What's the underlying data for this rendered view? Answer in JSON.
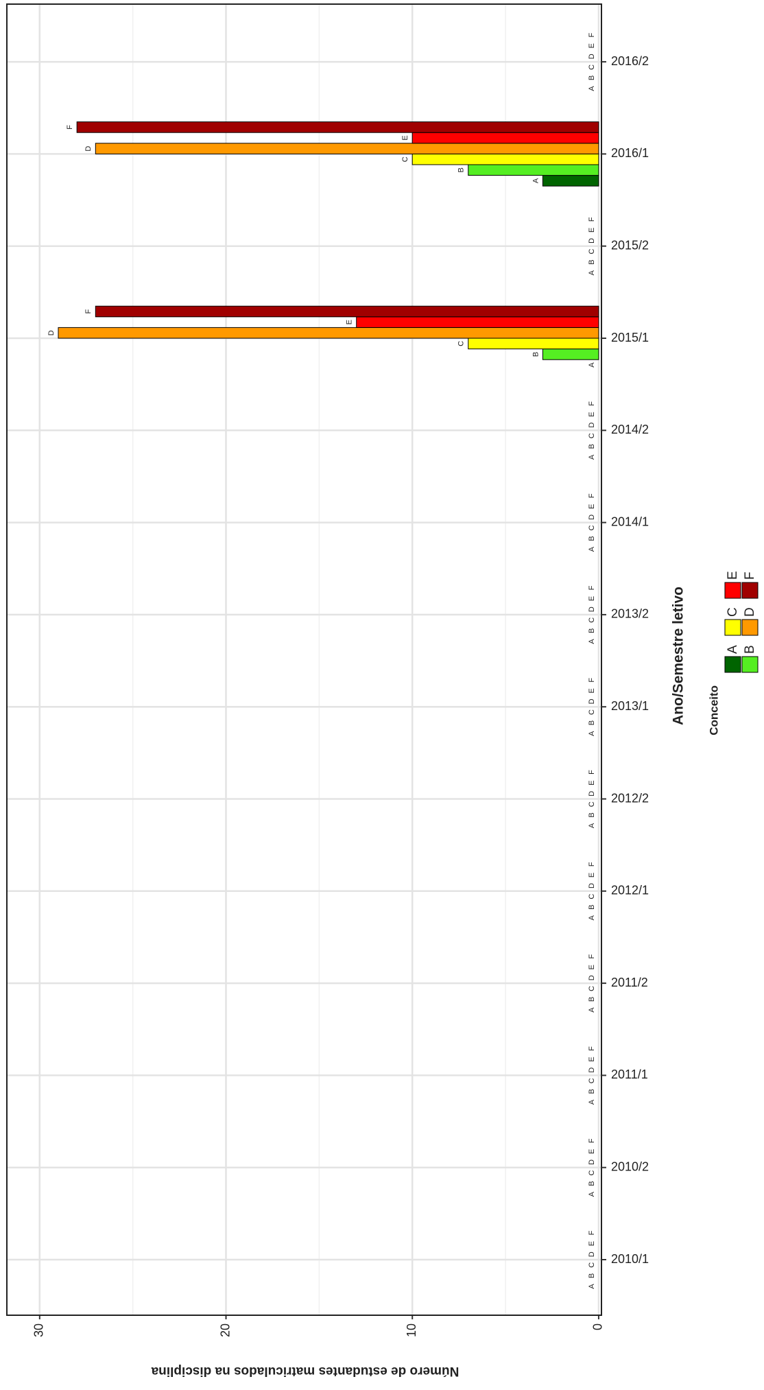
{
  "chart_data": {
    "type": "bar",
    "x_label": "Ano/Semestre letivo",
    "y_label": "Número de estudantes matriculados na disciplina",
    "legend_title": "Conceito",
    "categories": [
      "2010/1",
      "2010/2",
      "2011/1",
      "2011/2",
      "2012/1",
      "2012/2",
      "2013/1",
      "2013/2",
      "2014/1",
      "2014/2",
      "2015/1",
      "2015/2",
      "2016/1",
      "2016/2"
    ],
    "series": [
      {
        "name": "A",
        "color": "#006400",
        "values": [
          0,
          0,
          0,
          0,
          0,
          0,
          0,
          0,
          0,
          0,
          0,
          0,
          3,
          0
        ]
      },
      {
        "name": "B",
        "color": "#55ee22",
        "values": [
          0,
          0,
          0,
          0,
          0,
          0,
          0,
          0,
          0,
          0,
          3,
          0,
          7,
          0
        ]
      },
      {
        "name": "C",
        "color": "#ffff00",
        "values": [
          0,
          0,
          0,
          0,
          0,
          0,
          0,
          0,
          0,
          0,
          7,
          0,
          10,
          0
        ]
      },
      {
        "name": "D",
        "color": "#ff9900",
        "values": [
          0,
          0,
          0,
          0,
          0,
          0,
          0,
          0,
          0,
          0,
          29,
          0,
          27,
          0
        ]
      },
      {
        "name": "E",
        "color": "#ff0000",
        "values": [
          0,
          0,
          0,
          0,
          0,
          0,
          0,
          0,
          0,
          0,
          13,
          0,
          10,
          0
        ]
      },
      {
        "name": "F",
        "color": "#a00000",
        "values": [
          0,
          0,
          0,
          0,
          0,
          0,
          0,
          0,
          0,
          0,
          27,
          0,
          28,
          0
        ]
      }
    ],
    "ylim": [
      -0.15,
      31.76
    ],
    "yticks": [
      0,
      10,
      20,
      30
    ],
    "y_minor_ticks": [
      5,
      15,
      25
    ],
    "grid": true
  }
}
